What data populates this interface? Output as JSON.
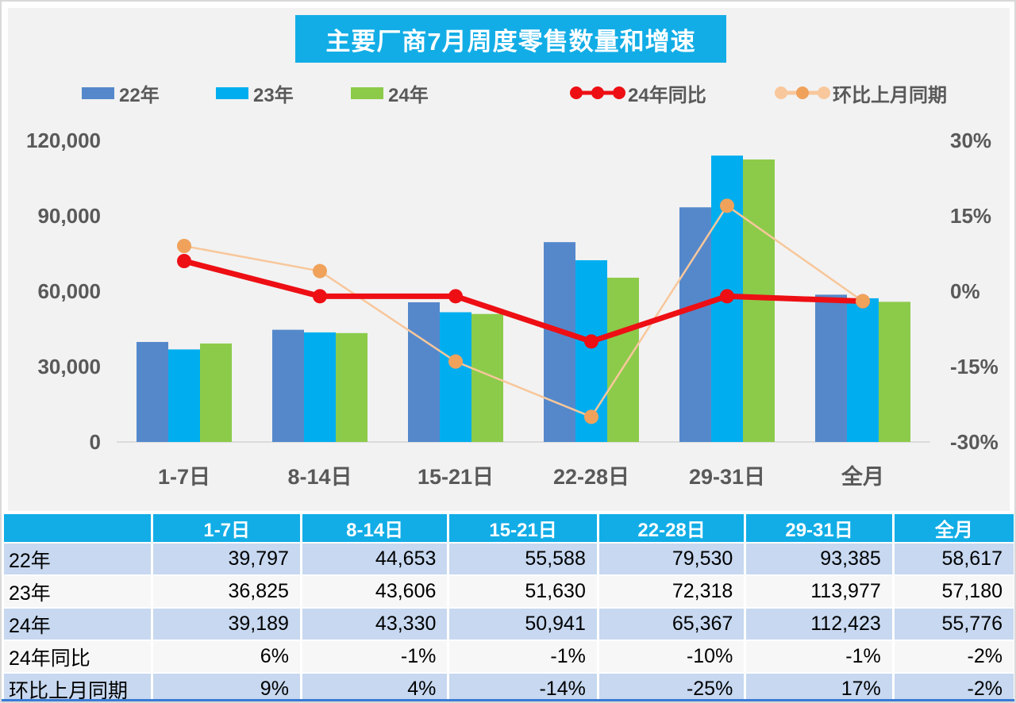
{
  "chart_data": {
    "type": "combo-bar-line",
    "title": "主要厂商7月周度零售数量和增速",
    "categories": [
      "1-7日",
      "8-14日",
      "15-21日",
      "22-28日",
      "29-31日",
      "全月"
    ],
    "bar_series": [
      {
        "name": "22年",
        "color": "#5588CB",
        "values": [
          39797,
          44653,
          55588,
          79530,
          93385,
          58617
        ]
      },
      {
        "name": "23年",
        "color": "#00AEEF",
        "values": [
          36825,
          43606,
          51630,
          72318,
          113977,
          57180
        ]
      },
      {
        "name": "24年",
        "color": "#8CCB4A",
        "values": [
          39189,
          43330,
          50941,
          65367,
          112423,
          55776
        ]
      }
    ],
    "line_series": [
      {
        "name": "24年同比",
        "color": "#ED0F14",
        "marker_color": "#ED0F14",
        "stroke_width": 7,
        "values_pct": [
          6,
          -1,
          -1,
          -10,
          -1,
          -2
        ]
      },
      {
        "name": "环比上月同期",
        "color": "#F8C79B",
        "marker_color": "#F0A25B",
        "stroke_width": 2.5,
        "values_pct": [
          9,
          4,
          -14,
          -25,
          17,
          -2
        ]
      }
    ],
    "left_axis": {
      "min": 0,
      "max": 120000,
      "tick_labels": [
        "120,000",
        "90,000",
        "60,000",
        "30,000",
        "0"
      ],
      "tick_values": [
        120000,
        90000,
        60000,
        30000,
        0
      ]
    },
    "right_axis": {
      "min": -30,
      "max": 30,
      "tick_labels": [
        "30%",
        "15%",
        "0%",
        "-15%",
        "-30%"
      ],
      "tick_values": [
        30,
        15,
        0,
        -15,
        -30
      ]
    },
    "legend": [
      {
        "label": "22年",
        "type": "bar",
        "color": "#5588CB"
      },
      {
        "label": "23年",
        "type": "bar",
        "color": "#00AEEF"
      },
      {
        "label": "24年",
        "type": "bar",
        "color": "#8CCB4A"
      },
      {
        "label": "24年同比",
        "type": "line",
        "color": "#ED0F14",
        "marker_color": "#ED0F14"
      },
      {
        "label": "环比上月同期",
        "type": "line",
        "color": "#F8C79B",
        "marker_color": "#F0A25B"
      }
    ],
    "grid": false,
    "legend_position": "top"
  },
  "table": {
    "columns": [
      "",
      "1-7日",
      "8-14日",
      "15-21日",
      "22-28日",
      "29-31日",
      "全月"
    ],
    "rows": [
      {
        "label": "22年",
        "values": [
          "39,797",
          "44,653",
          "55,588",
          "79,530",
          "93,385",
          "58,617"
        ]
      },
      {
        "label": "23年",
        "values": [
          "36,825",
          "43,606",
          "51,630",
          "72,318",
          "113,977",
          "57,180"
        ]
      },
      {
        "label": "24年",
        "values": [
          "39,189",
          "43,330",
          "50,941",
          "65,367",
          "112,423",
          "55,776"
        ]
      },
      {
        "label": "24年同比",
        "values": [
          "6%",
          "-1%",
          "-1%",
          "-10%",
          "-1%",
          "-2%"
        ]
      },
      {
        "label": "环比上月同期",
        "values": [
          "9%",
          "4%",
          "-14%",
          "-25%",
          "17%",
          "-2%"
        ]
      }
    ]
  },
  "colors": {
    "panel_bg": "#f2f2f2",
    "title_bg": "#12ADE6",
    "header_bg": "#12ADE6",
    "row_blue": "#C7D8F0",
    "row_plain": "#F7F7F7",
    "axis_text": "#595959",
    "axis_line": "#DBDBDB",
    "bottom_strip": "#3A7BD5"
  }
}
